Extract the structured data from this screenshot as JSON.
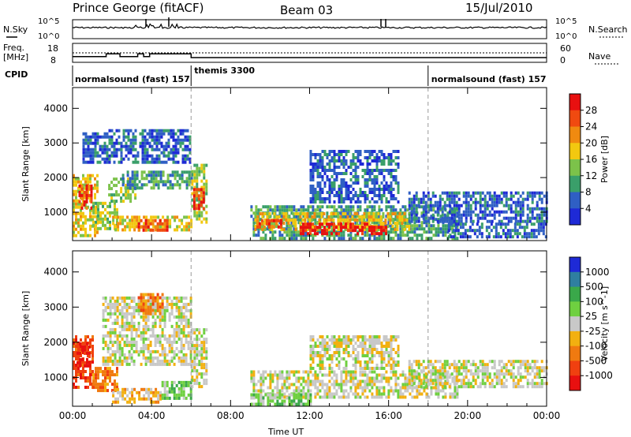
{
  "header": {
    "radar": "Prince George (fitACF)",
    "beam": "Beam 03",
    "date": "15/Jul/2010"
  },
  "status_panels": {
    "nsky": {
      "label": "N.Sky",
      "tick_top": "10^5",
      "tick_bottom": "10^0",
      "right_label": "N.Search",
      "right_tick_top": "10^5",
      "right_tick_bottom": "10^0"
    },
    "freq": {
      "label_line1": "Freq.",
      "label_line2": "[MHz]",
      "tick_top": "18",
      "tick_bottom": "8",
      "right_label": "Nave",
      "right_tick_top": "60",
      "right_tick_bottom": "0",
      "segments": [
        [
          0,
          11
        ],
        [
          1.7,
          11
        ],
        [
          1.7,
          12.5
        ],
        [
          2.4,
          12.5
        ],
        [
          2.4,
          11
        ],
        [
          3.3,
          11
        ],
        [
          3.3,
          12.5
        ],
        [
          3.6,
          12.5
        ],
        [
          3.6,
          11
        ],
        [
          3.9,
          11
        ],
        [
          3.9,
          12.5
        ],
        [
          6.0,
          12.5
        ],
        [
          6.0,
          10.5
        ],
        [
          24,
          10.5
        ]
      ]
    },
    "cpid": {
      "label": "CPID",
      "programs": [
        {
          "name": "normalsound (fast) 157",
          "start": 0
        },
        {
          "name": "themis 3300",
          "start": 6
        },
        {
          "name": "normalsound (fast) 157",
          "start": 18
        }
      ]
    }
  },
  "chart_data": [
    {
      "type": "heatmap",
      "quantity": "Power",
      "ylabel": "Slant Range [km]",
      "xlabel": "",
      "xlim": [
        0,
        24
      ],
      "ylim": [
        180,
        4600
      ],
      "y_ticks": [
        1000,
        2000,
        3000,
        4000
      ],
      "x_ticks": [
        0,
        4,
        8,
        12,
        16,
        20,
        24
      ],
      "colorbar": {
        "label": "Power [dB]",
        "ticks": [
          "4",
          "8",
          "12",
          "16",
          "20",
          "24",
          "28"
        ],
        "colors": [
          "#1e2ad6",
          "#2f5fc4",
          "#3a9f6a",
          "#7cc24a",
          "#f2c810",
          "#f08a10",
          "#f04a10",
          "#e81010"
        ]
      },
      "regions": [
        {
          "x0": 0.0,
          "x1": 1.2,
          "y0": 300,
          "y1": 2100,
          "level": 4
        },
        {
          "x0": 0.3,
          "x1": 1.0,
          "y0": 1100,
          "y1": 1800,
          "level": 6
        },
        {
          "x0": 1.0,
          "x1": 2.2,
          "y0": 500,
          "y1": 1300,
          "level": 3
        },
        {
          "x0": 1.8,
          "x1": 3.2,
          "y0": 1300,
          "y1": 2000,
          "level": 3
        },
        {
          "x0": 2.0,
          "x1": 6.0,
          "y0": 500,
          "y1": 900,
          "level": 4
        },
        {
          "x0": 3.3,
          "x1": 4.8,
          "y0": 500,
          "y1": 800,
          "level": 6
        },
        {
          "x0": 0.5,
          "x1": 6.0,
          "y0": 2400,
          "y1": 3400,
          "level": 1
        },
        {
          "x0": 2.5,
          "x1": 6.0,
          "y0": 1700,
          "y1": 2200,
          "level": 2
        },
        {
          "x0": 6.0,
          "x1": 6.8,
          "y0": 700,
          "y1": 2400,
          "level": 3
        },
        {
          "x0": 6.1,
          "x1": 6.6,
          "y0": 1100,
          "y1": 1700,
          "level": 6
        },
        {
          "x0": 9.0,
          "x1": 19.5,
          "y0": 250,
          "y1": 1200,
          "level": 2
        },
        {
          "x0": 9.2,
          "x1": 17.0,
          "y0": 500,
          "y1": 1000,
          "level": 4
        },
        {
          "x0": 11.5,
          "x1": 16.0,
          "y0": 400,
          "y1": 700,
          "level": 7
        },
        {
          "x0": 9.3,
          "x1": 10.5,
          "y0": 550,
          "y1": 800,
          "level": 6
        },
        {
          "x0": 12.0,
          "x1": 16.5,
          "y0": 1300,
          "y1": 2800,
          "level": 1
        },
        {
          "x0": 17.0,
          "x1": 24.0,
          "y0": 700,
          "y1": 1600,
          "level": 1
        },
        {
          "x0": 19.0,
          "x1": 24.0,
          "y0": 300,
          "y1": 700,
          "level": 1
        }
      ]
    },
    {
      "type": "heatmap",
      "quantity": "Velocity",
      "ylabel": "Slant Range [km]",
      "xlabel": "Time UT",
      "xlim": [
        0,
        24
      ],
      "ylim": [
        180,
        4600
      ],
      "y_ticks": [
        1000,
        2000,
        3000,
        4000
      ],
      "x_ticks": [
        0,
        4,
        8,
        12,
        16,
        20,
        24
      ],
      "x_tick_labels": [
        "00:00",
        "04:00",
        "08:00",
        "12:00",
        "16:00",
        "20:00",
        "00:00"
      ],
      "colorbar": {
        "label": "Velocity [m s^-1]",
        "ticks": [
          "1000",
          "500",
          "100",
          "25",
          "-25",
          "-100",
          "-500",
          "-1000"
        ],
        "colors": [
          "#1e2ad6",
          "#2f7fa0",
          "#3aa84a",
          "#6fd040",
          "#c8c8c8",
          "#f2b010",
          "#f07a10",
          "#f04010",
          "#e81010"
        ]
      },
      "regions": [
        {
          "x0": 0.0,
          "x1": 1.0,
          "y0": 700,
          "y1": 2200,
          "level": 7
        },
        {
          "x0": 0.2,
          "x1": 0.8,
          "y0": 1300,
          "y1": 2000,
          "level": 8
        },
        {
          "x0": 1.0,
          "x1": 2.3,
          "y0": 600,
          "y1": 1300,
          "level": 6
        },
        {
          "x0": 2.0,
          "x1": 4.5,
          "y0": 300,
          "y1": 700,
          "level": 5
        },
        {
          "x0": 4.5,
          "x1": 6.0,
          "y0": 400,
          "y1": 900,
          "level": 3
        },
        {
          "x0": 1.5,
          "x1": 6.0,
          "y0": 1400,
          "y1": 3300,
          "level": 4
        },
        {
          "x0": 6.0,
          "x1": 6.8,
          "y0": 700,
          "y1": 2400,
          "level": 4
        },
        {
          "x0": 9.0,
          "x1": 19.5,
          "y0": 400,
          "y1": 1200,
          "level": 4
        },
        {
          "x0": 9.0,
          "x1": 12.0,
          "y0": 250,
          "y1": 550,
          "level": 3
        },
        {
          "x0": 12.0,
          "x1": 16.5,
          "y0": 1300,
          "y1": 2200,
          "level": 4
        },
        {
          "x0": 17.0,
          "x1": 24.0,
          "y0": 700,
          "y1": 1500,
          "level": 4
        },
        {
          "x0": 3.3,
          "x1": 4.5,
          "y0": 2800,
          "y1": 3400,
          "level": 6
        }
      ]
    }
  ]
}
